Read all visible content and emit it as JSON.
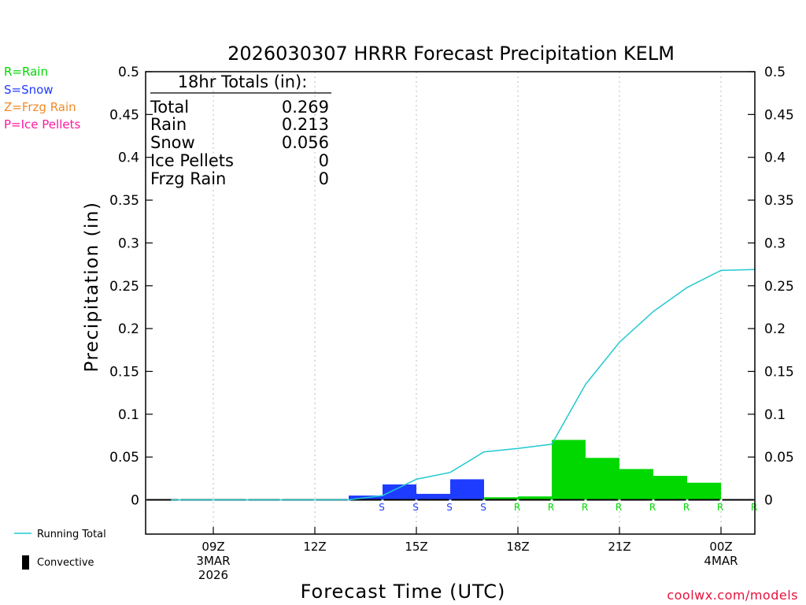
{
  "chart_data": {
    "type": "bar",
    "title": "2026030307 HRRR Forecast Precipitation KELM",
    "xlabel": "Forecast Time (UTC)",
    "ylabel": "Precipitation (in)",
    "ylim": [
      -0.04,
      0.5
    ],
    "y_ticks": [
      "0",
      "0.05",
      "0.1",
      "0.15",
      "0.2",
      "0.25",
      "0.3",
      "0.35",
      "0.4",
      "0.45",
      "0.5"
    ],
    "x_ticks": [
      {
        "hour": 9,
        "lines": [
          "09Z",
          "3MAR",
          "2026"
        ]
      },
      {
        "hour": 12,
        "lines": [
          "12Z"
        ]
      },
      {
        "hour": 15,
        "lines": [
          "15Z"
        ]
      },
      {
        "hour": 18,
        "lines": [
          "18Z"
        ]
      },
      {
        "hour": 21,
        "lines": [
          "21Z"
        ]
      },
      {
        "hour": 24,
        "lines": [
          "00Z",
          "4MAR"
        ]
      }
    ],
    "x_range": [
      7.0,
      25.0
    ],
    "hourly": [
      {
        "hour": 8,
        "value": 0,
        "type": ""
      },
      {
        "hour": 9,
        "value": 0,
        "type": ""
      },
      {
        "hour": 10,
        "value": 0,
        "type": ""
      },
      {
        "hour": 11,
        "value": 0,
        "type": ""
      },
      {
        "hour": 12,
        "value": 0,
        "type": ""
      },
      {
        "hour": 13,
        "value": 0,
        "type": ""
      },
      {
        "hour": 14,
        "value": 0.005,
        "type": "S"
      },
      {
        "hour": 15,
        "value": 0.018,
        "type": "S"
      },
      {
        "hour": 16,
        "value": 0.007,
        "type": "S"
      },
      {
        "hour": 17,
        "value": 0.024,
        "type": "S"
      },
      {
        "hour": 18,
        "value": 0.003,
        "type": "R"
      },
      {
        "hour": 19,
        "value": 0.004,
        "type": "R"
      },
      {
        "hour": 20,
        "value": 0.07,
        "type": "R"
      },
      {
        "hour": 21,
        "value": 0.049,
        "type": "R"
      },
      {
        "hour": 22,
        "value": 0.036,
        "type": "R"
      },
      {
        "hour": 23,
        "value": 0.028,
        "type": "R"
      },
      {
        "hour": 24,
        "value": 0.02,
        "type": "R"
      },
      {
        "hour": 25,
        "value": 0,
        "type": "R"
      }
    ],
    "running_total": [
      {
        "hour": 7.75,
        "value": 0
      },
      {
        "hour": 13.0,
        "value": 0
      },
      {
        "hour": 14.0,
        "value": 0.005
      },
      {
        "hour": 15.0,
        "value": 0.024
      },
      {
        "hour": 16.0,
        "value": 0.032
      },
      {
        "hour": 17.0,
        "value": 0.056
      },
      {
        "hour": 18.0,
        "value": 0.06
      },
      {
        "hour": 19.0,
        "value": 0.065
      },
      {
        "hour": 20.0,
        "value": 0.135
      },
      {
        "hour": 21.0,
        "value": 0.184
      },
      {
        "hour": 22.0,
        "value": 0.22
      },
      {
        "hour": 23.0,
        "value": 0.248
      },
      {
        "hour": 24.0,
        "value": 0.268
      },
      {
        "hour": 25.0,
        "value": 0.269
      }
    ],
    "type_colors": {
      "R": "#00d800",
      "S": "#1e3cff",
      "Z": "#f08a28",
      "P": "#ff1aa0"
    },
    "running_total_color": "#22c8d0",
    "grid": "vertical dotted at x ticks",
    "legend_placement": "left"
  },
  "totals_box": {
    "heading": "18hr Totals (in):",
    "rows": [
      {
        "label": "Total",
        "value": "0.269"
      },
      {
        "label": "Rain",
        "value": "0.213"
      },
      {
        "label": "Snow",
        "value": "0.056"
      },
      {
        "label": "Ice Pellets",
        "value": "0"
      },
      {
        "label": "Frzg Rain",
        "value": "0"
      }
    ]
  },
  "type_legend": [
    {
      "label": "R=Rain",
      "color": "#00d800"
    },
    {
      "label": "S=Snow",
      "color": "#1e3cff"
    },
    {
      "label": "Z=Frzg Rain",
      "color": "#f08a28"
    },
    {
      "label": "P=Ice Pellets",
      "color": "#ff1aa0"
    }
  ],
  "line_legend": {
    "running_total": "Running Total",
    "convective": "Convective"
  },
  "credit": {
    "text": "coolwx.com/models",
    "color": "#e8103c"
  }
}
